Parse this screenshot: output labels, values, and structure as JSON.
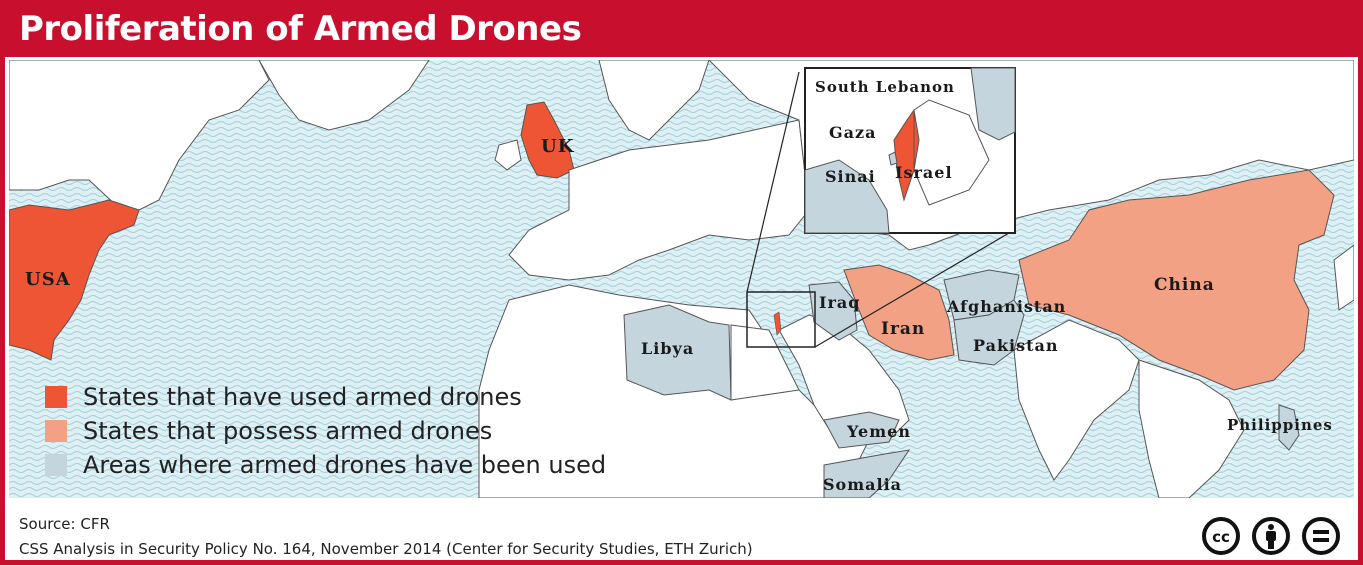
{
  "title": "Proliferation of Armed Drones",
  "colors": {
    "brand": "#c8102e",
    "used": "#ee5534",
    "possess": "#f2a184",
    "areas": "#c5d5de",
    "land": "#ffffff",
    "sea": "#d9eef3"
  },
  "labels": {
    "usa": "USA",
    "uk": "UK",
    "china": "China",
    "iran": "Iran",
    "iraq": "Iraq",
    "afghanistan": "Afghanistan",
    "pakistan": "Pakistan",
    "libya": "Libya",
    "yemen": "Yemen",
    "somalia": "Somalia",
    "philippines": "Philippines",
    "south_lebanon": "South Lebanon",
    "gaza": "Gaza",
    "sinai": "Sinai",
    "israel": "Israel"
  },
  "legend": [
    {
      "label": "States that have used armed drones",
      "color": "#ee5534"
    },
    {
      "label": "States that possess armed drones",
      "color": "#f2a184"
    },
    {
      "label": "Areas where armed drones have been used",
      "color": "#c5d5de"
    }
  ],
  "footer": {
    "source": "Source: CFR",
    "citation": "CSS Analysis in Security Policy No. 164, November 2014 (Center for Security Studies, ETH Zurich)"
  },
  "license_icons": [
    "creative-commons-icon",
    "attribution-icon",
    "no-derivatives-icon"
  ]
}
